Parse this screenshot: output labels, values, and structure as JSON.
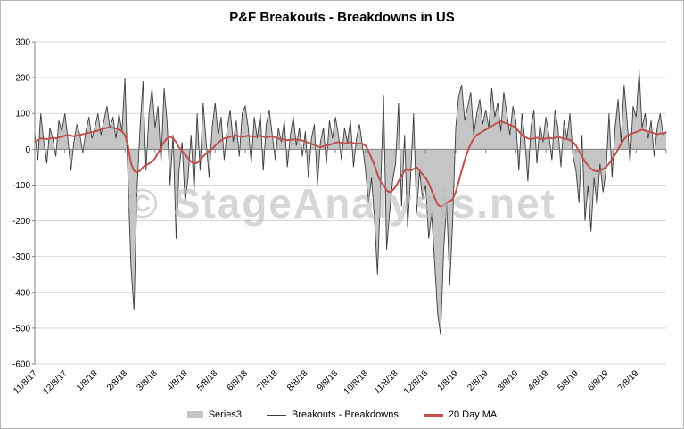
{
  "title": "P&F Breakouts - Breakdowns in US",
  "watermark": "© StageAnalysis.net",
  "legend": [
    {
      "label": "Series3"
    },
    {
      "label": "Breakouts - Breakdowns"
    },
    {
      "label": "20 Day MA"
    }
  ],
  "colors": {
    "area": "#c5c5c5",
    "breakdowns_line": "#3c3c3c",
    "ma_line": "#c0504d",
    "grid": "#d9d9d9",
    "axis": "#808080",
    "watermark": "#bdbdbd"
  },
  "chart_data": {
    "type": "line",
    "title": "P&F Breakouts - Breakdowns in US",
    "xlabel": "",
    "ylabel": "",
    "ylim": [
      -600,
      300
    ],
    "ytick_step": 100,
    "grid": true,
    "legend_position": "bottom",
    "x_labels": [
      "11/8/17",
      "12/8/17",
      "1/8/18",
      "2/8/18",
      "3/8/18",
      "4/8/18",
      "5/8/18",
      "6/8/18",
      "7/8/18",
      "8/8/18",
      "9/8/18",
      "10/8/18",
      "11/8/18",
      "12/8/18",
      "1/8/19",
      "2/8/19",
      "3/8/19",
      "4/8/19",
      "5/8/19",
      "6/8/19",
      "7/8/19"
    ],
    "tick_interval": 10,
    "series": [
      {
        "name": "Series3",
        "type": "area",
        "values_from": "breakdowns"
      },
      {
        "name": "Breakouts - Breakdowns",
        "type": "line",
        "values_from": "breakdowns"
      },
      {
        "name": "20 Day MA",
        "type": "line",
        "values_from": "ma20"
      }
    ],
    "breakdowns": [
      40,
      -30,
      100,
      20,
      -40,
      60,
      30,
      -20,
      80,
      50,
      100,
      30,
      -60,
      20,
      70,
      40,
      -10,
      50,
      90,
      30,
      60,
      100,
      40,
      80,
      120,
      60,
      90,
      30,
      100,
      50,
      200,
      -80,
      -330,
      -450,
      -120,
      60,
      190,
      -60,
      100,
      170,
      60,
      120,
      -40,
      170,
      80,
      -100,
      40,
      -250,
      -60,
      20,
      -150,
      -80,
      40,
      -120,
      100,
      -60,
      130,
      20,
      -80,
      60,
      130,
      40,
      90,
      -30,
      60,
      110,
      20,
      80,
      -20,
      100,
      120,
      60,
      -40,
      90,
      30,
      100,
      -60,
      70,
      110,
      40,
      -30,
      60,
      20,
      80,
      -50,
      40,
      90,
      10,
      60,
      -20,
      50,
      -80,
      30,
      70,
      -100,
      20,
      60,
      -40,
      80,
      30,
      90,
      40,
      -30,
      60,
      20,
      80,
      -50,
      30,
      70,
      10,
      -60,
      -150,
      -80,
      -200,
      -350,
      -120,
      150,
      -280,
      -180,
      -90,
      -40,
      130,
      -160,
      40,
      -220,
      -80,
      100,
      -180,
      -60,
      -140,
      -100,
      -250,
      -180,
      -320,
      -460,
      -520,
      -280,
      -150,
      -380,
      -200,
      60,
      150,
      180,
      80,
      120,
      160,
      40,
      100,
      140,
      70,
      110,
      60,
      170,
      90,
      130,
      50,
      160,
      100,
      40,
      120,
      80,
      -60,
      100,
      30,
      -90,
      60,
      110,
      -40,
      70,
      20,
      90,
      40,
      -30,
      110,
      60,
      -50,
      80,
      30,
      100,
      -20,
      -60,
      -150,
      40,
      -200,
      -100,
      -230,
      -80,
      -160,
      -40,
      -120,
      -60,
      100,
      -80,
      60,
      140,
      20,
      180,
      80,
      -40,
      120,
      90,
      220,
      60,
      100,
      30,
      80,
      -20,
      60,
      100,
      40,
      50
    ],
    "ma20": [
      20,
      25,
      30,
      30,
      28,
      30,
      32,
      30,
      33,
      35,
      38,
      40,
      38,
      36,
      38,
      40,
      42,
      44,
      46,
      48,
      50,
      52,
      55,
      58,
      60,
      62,
      60,
      58,
      55,
      50,
      40,
      10,
      -40,
      -60,
      -65,
      -60,
      -50,
      -45,
      -40,
      -35,
      -25,
      -10,
      5,
      20,
      30,
      35,
      30,
      20,
      5,
      -5,
      -15,
      -25,
      -35,
      -40,
      -38,
      -30,
      -20,
      -12,
      -5,
      0,
      10,
      18,
      25,
      30,
      32,
      35,
      36,
      38,
      36,
      35,
      36,
      38,
      36,
      35,
      36,
      38,
      35,
      33,
      35,
      36,
      33,
      30,
      28,
      27,
      25,
      26,
      28,
      27,
      26,
      24,
      22,
      18,
      15,
      12,
      8,
      5,
      8,
      10,
      12,
      15,
      18,
      20,
      18,
      16,
      18,
      20,
      17,
      15,
      16,
      15,
      10,
      -5,
      -25,
      -45,
      -70,
      -90,
      -100,
      -115,
      -120,
      -115,
      -105,
      -90,
      -75,
      -60,
      -55,
      -60,
      -55,
      -50,
      -60,
      -70,
      -80,
      -95,
      -115,
      -135,
      -155,
      -160,
      -158,
      -150,
      -145,
      -140,
      -120,
      -90,
      -60,
      -30,
      -5,
      15,
      30,
      40,
      45,
      50,
      55,
      60,
      65,
      70,
      75,
      78,
      75,
      72,
      68,
      65,
      60,
      50,
      40,
      35,
      30,
      28,
      30,
      32,
      30,
      28,
      30,
      32,
      30,
      32,
      34,
      32,
      30,
      28,
      26,
      20,
      10,
      -5,
      -20,
      -35,
      -45,
      -55,
      -60,
      -62,
      -60,
      -55,
      -50,
      -40,
      -28,
      -15,
      0,
      15,
      28,
      38,
      42,
      45,
      48,
      52,
      55,
      52,
      50,
      48,
      45,
      42,
      44,
      45,
      46
    ]
  }
}
